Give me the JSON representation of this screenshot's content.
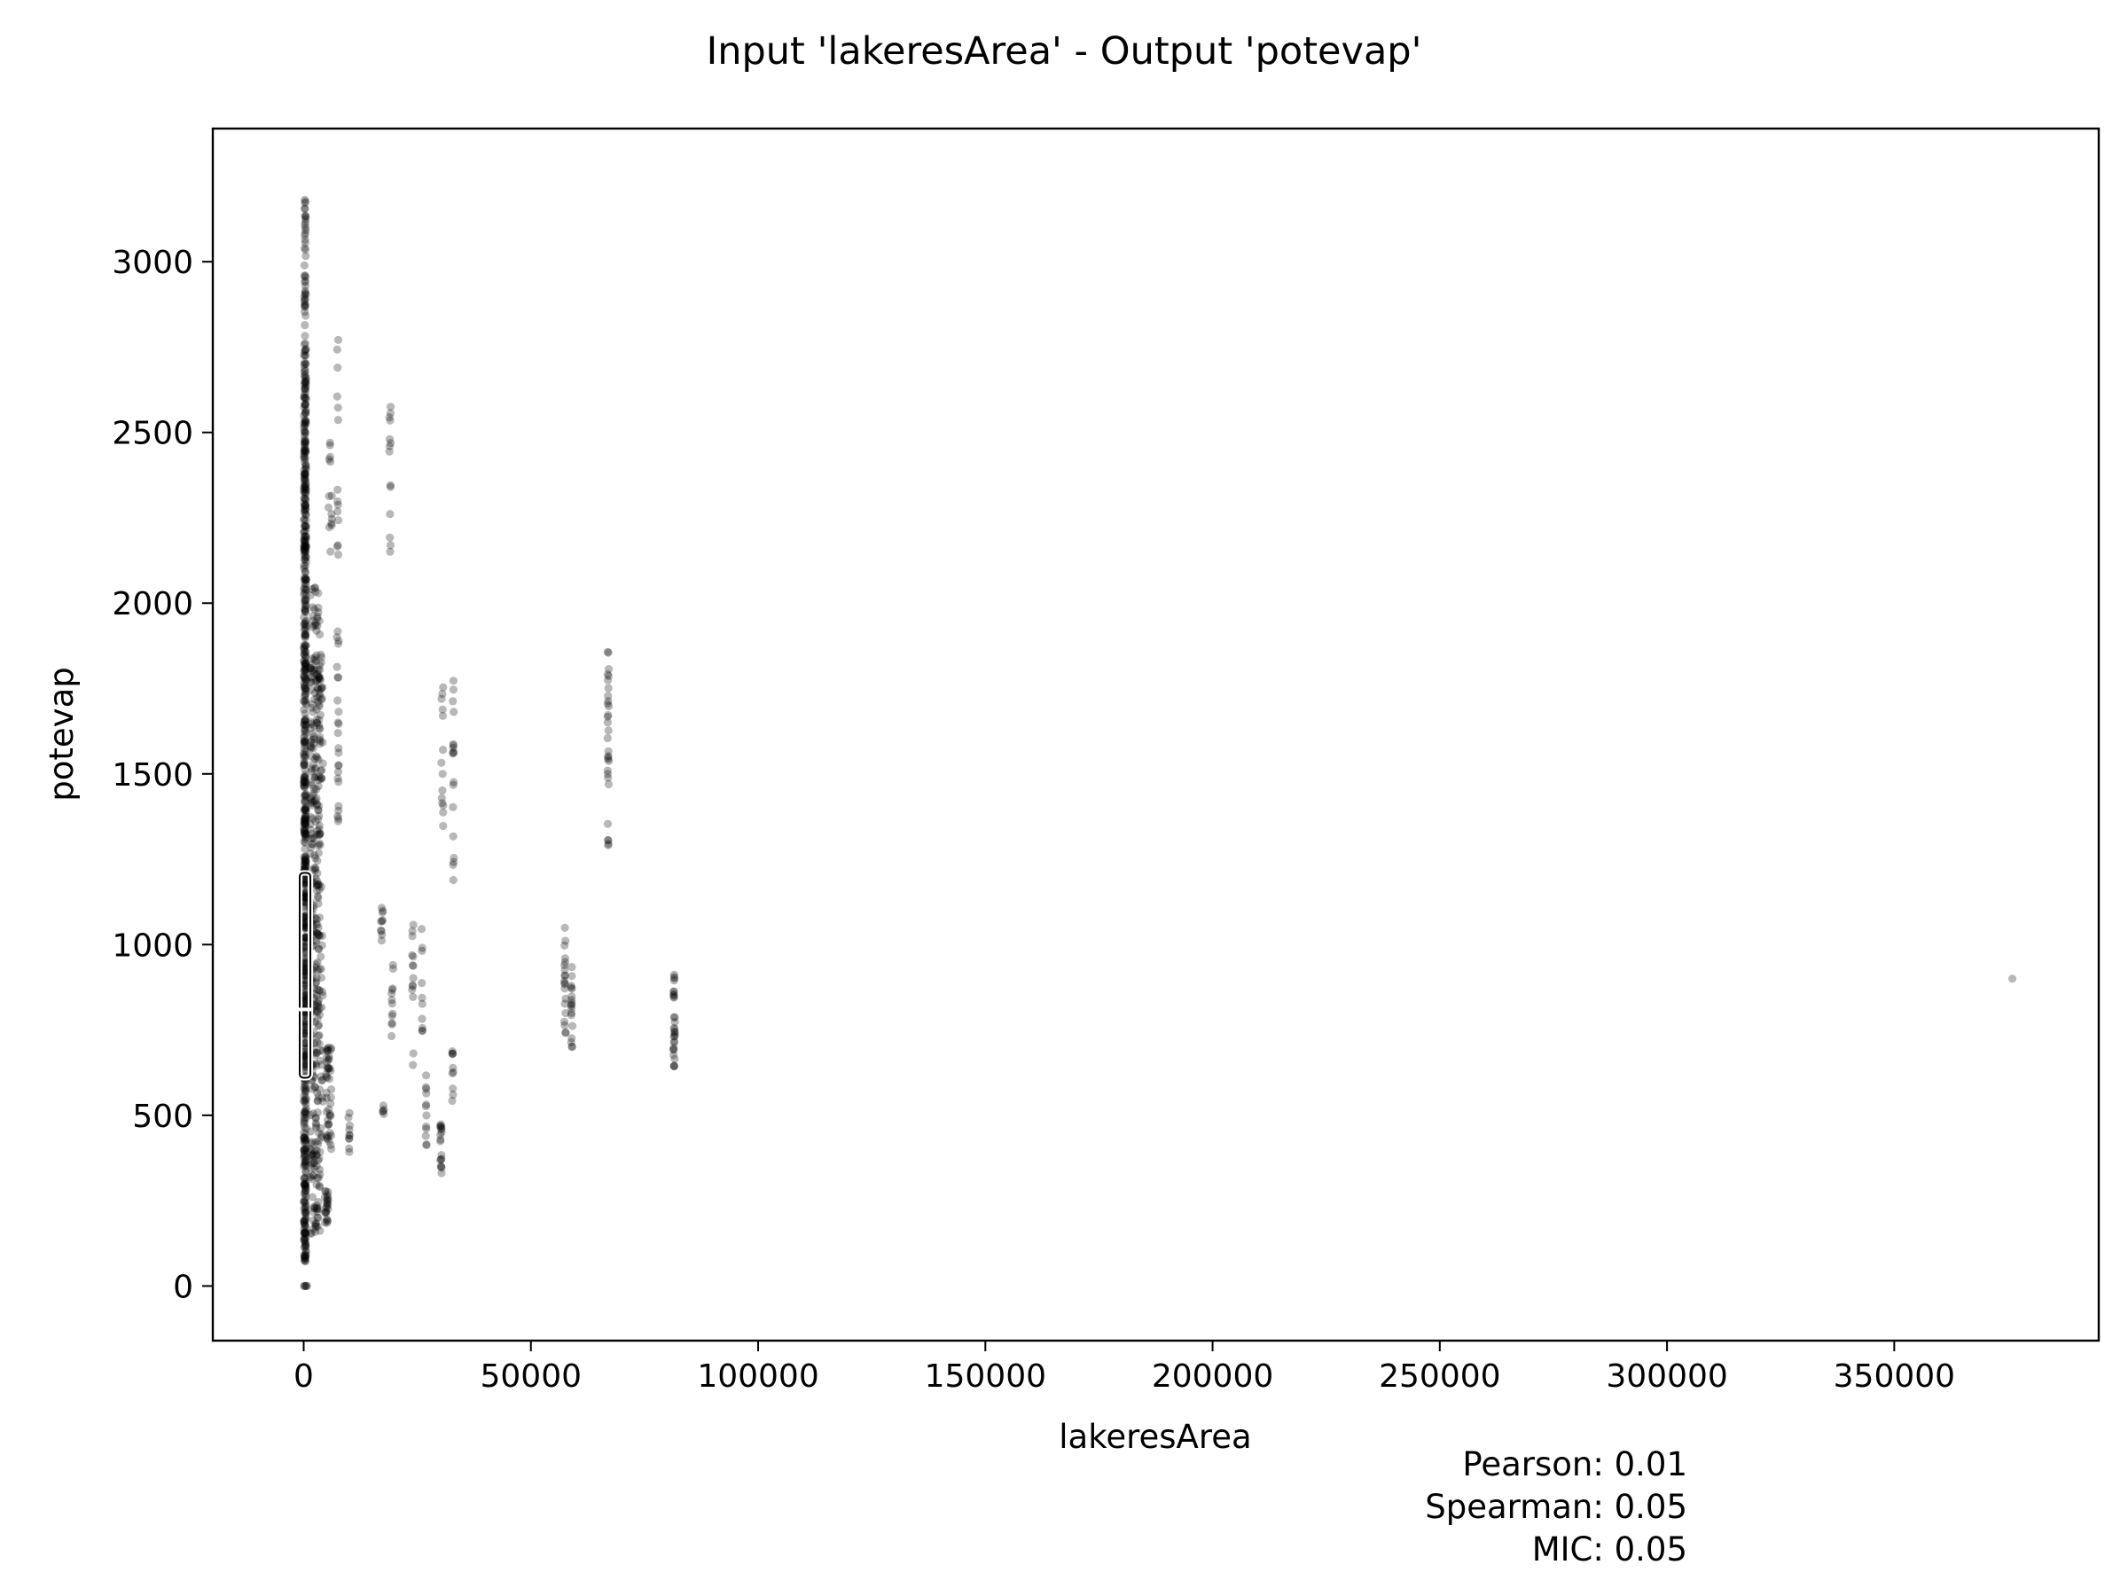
{
  "chart_data": {
    "type": "scatter",
    "title": "Input 'lakeresArea' - Output 'potevap'",
    "xlabel": "lakeresArea",
    "ylabel": "potevap",
    "xlim": [
      -20000,
      395000
    ],
    "ylim": [
      -160,
      3390
    ],
    "xticks": [
      0,
      50000,
      100000,
      150000,
      200000,
      250000,
      300000,
      350000
    ],
    "yticks": [
      0,
      500,
      1000,
      1500,
      2000,
      2500,
      3000
    ],
    "grid": false,
    "legend": "none",
    "point_color": "#000000",
    "point_opacity": 0.28,
    "stats": [
      {
        "label": "Pearson: 0.01"
      },
      {
        "label": "Spearman: 0.05"
      },
      {
        "label": "MIC: 0.05"
      }
    ],
    "clusters": [
      {
        "x": 300,
        "xspread": 500,
        "ymin": 70,
        "ymax": 2750,
        "n": 700
      },
      {
        "x": 300,
        "xspread": 300,
        "ymin": 2750,
        "ymax": 3220,
        "n": 45
      },
      {
        "x": 2500,
        "xspread": 2200,
        "ymin": 150,
        "ymax": 2050,
        "n": 300
      },
      {
        "x": 3500,
        "xspread": 1500,
        "ymin": 380,
        "ymax": 1850,
        "n": 90
      },
      {
        "x": 5000,
        "xspread": 800,
        "ymin": 180,
        "ymax": 280,
        "n": 24
      },
      {
        "x": 5500,
        "xspread": 1200,
        "ymin": 400,
        "ymax": 700,
        "n": 45
      },
      {
        "x": 5800,
        "xspread": 800,
        "ymin": 2150,
        "ymax": 2480,
        "n": 14
      },
      {
        "x": 7500,
        "xspread": 400,
        "ymin": 1280,
        "ymax": 2000,
        "n": 24
      },
      {
        "x": 7500,
        "xspread": 300,
        "ymin": 2100,
        "ymax": 2850,
        "n": 14
      },
      {
        "x": 10000,
        "xspread": 300,
        "ymin": 380,
        "ymax": 520,
        "n": 10
      },
      {
        "x": 17200,
        "xspread": 500,
        "ymin": 1000,
        "ymax": 1110,
        "n": 10
      },
      {
        "x": 17500,
        "xspread": 300,
        "ymin": 490,
        "ymax": 540,
        "n": 5
      },
      {
        "x": 19000,
        "xspread": 300,
        "ymin": 2100,
        "ymax": 2590,
        "n": 14
      },
      {
        "x": 19500,
        "xspread": 400,
        "ymin": 700,
        "ymax": 950,
        "n": 12
      },
      {
        "x": 24000,
        "xspread": 300,
        "ymin": 640,
        "ymax": 1100,
        "n": 14
      },
      {
        "x": 26000,
        "xspread": 300,
        "ymin": 730,
        "ymax": 1060,
        "n": 10
      },
      {
        "x": 27000,
        "xspread": 300,
        "ymin": 360,
        "ymax": 650,
        "n": 12
      },
      {
        "x": 30200,
        "xspread": 300,
        "ymin": 330,
        "ymax": 480,
        "n": 18
      },
      {
        "x": 30500,
        "xspread": 400,
        "ymin": 1340,
        "ymax": 1780,
        "n": 14
      },
      {
        "x": 32800,
        "xspread": 300,
        "ymin": 420,
        "ymax": 690,
        "n": 10
      },
      {
        "x": 32900,
        "xspread": 300,
        "ymin": 1160,
        "ymax": 1790,
        "n": 18
      },
      {
        "x": 57500,
        "xspread": 300,
        "ymin": 740,
        "ymax": 1085,
        "n": 20
      },
      {
        "x": 59000,
        "xspread": 300,
        "ymin": 700,
        "ymax": 940,
        "n": 18
      },
      {
        "x": 67000,
        "xspread": 300,
        "ymin": 1260,
        "ymax": 1860,
        "n": 30
      },
      {
        "x": 81500,
        "xspread": 400,
        "ymin": 640,
        "ymax": 920,
        "n": 30
      }
    ],
    "extra_points": [
      [
        376000,
        900
      ],
      [
        200,
        0
      ],
      [
        400,
        0
      ],
      [
        600,
        0
      ],
      [
        100,
        0
      ],
      [
        700,
        0
      ]
    ],
    "box": {
      "x": 300,
      "q1": 610,
      "median": 810,
      "q3": 1210
    }
  }
}
